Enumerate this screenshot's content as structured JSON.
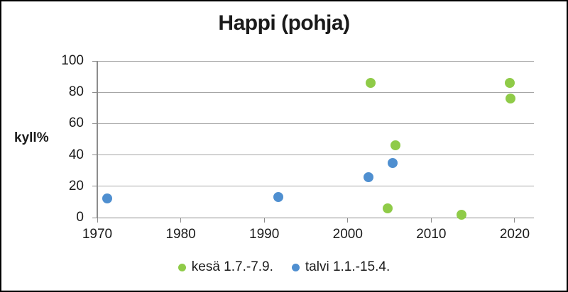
{
  "frame": {
    "background": "#ffffff",
    "border_color": "#000000"
  },
  "chart_data": {
    "type": "scatter",
    "title": "Happi (pohja)",
    "ylabel": "kyll%",
    "xlabel": "",
    "xlim": [
      1970,
      2022.3
    ],
    "ylim": [
      0,
      100
    ],
    "x_ticks": [
      1970,
      1980,
      1990,
      2000,
      2010,
      2020
    ],
    "y_ticks": [
      0,
      20,
      40,
      60,
      80,
      100
    ],
    "grid": true,
    "legend_position": "bottom",
    "gridline_color": "#a6a6a6",
    "axis_color": "#8c8c8c",
    "text_color": "#1a1a1a",
    "series": [
      {
        "name": "kesä 1.7.-7.9.",
        "id": "kesa",
        "color": "#8FCB48",
        "points": [
          [
            2002.7,
            86
          ],
          [
            2004.8,
            6
          ],
          [
            2005.7,
            46
          ],
          [
            2013.6,
            2
          ],
          [
            2019.4,
            86
          ],
          [
            2019.5,
            76
          ]
        ]
      },
      {
        "name": "talvi 1.1.-15.4.",
        "id": "talvi",
        "color": "#4F8FD0",
        "points": [
          [
            1971.2,
            12
          ],
          [
            1991.7,
            13
          ],
          [
            2002.5,
            26
          ],
          [
            2005.4,
            35
          ]
        ]
      }
    ]
  }
}
